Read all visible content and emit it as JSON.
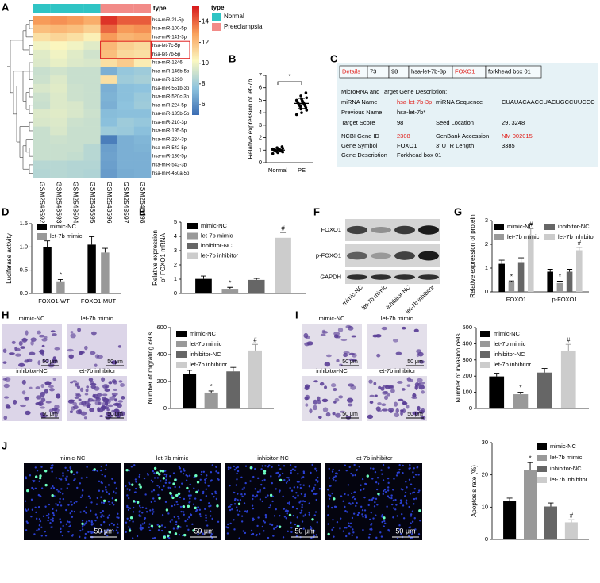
{
  "panel_labels": [
    "A",
    "B",
    "C",
    "D",
    "E",
    "F",
    "G",
    "H",
    "I",
    "J"
  ],
  "chart_data": [
    {
      "type": "heatmap",
      "annotation_label": "type",
      "group_legend_title": "type",
      "group_legend": [
        {
          "name": "Normal",
          "color": "#2fc4c4"
        },
        {
          "name": "Preeclampsia",
          "color": "#f28b88"
        }
      ],
      "columns": [
        "GSM2548592",
        "GSM2548593",
        "GSM2548594",
        "GSM2548595",
        "GSM2548596",
        "GSM2548597",
        "GSM2548598"
      ],
      "column_groups": [
        "Normal",
        "Normal",
        "Normal",
        "Normal",
        "Preeclampsia",
        "Preeclampsia",
        "Preeclampsia"
      ],
      "rows": [
        "hsa-miR-21-5p",
        "hsa-miR-100-5p",
        "hsa-miR-141-3p",
        "hsa-let-7c-5p",
        "hsa-let-7b-5p",
        "hsa-miR-1246",
        "hsa-miR-146b-5p",
        "hsa-miR-1290",
        "hsa-miR-551b-3p",
        "hsa-miR-520c-3p",
        "hsa-miR-224-5p",
        "hsa-miR-135b-5p",
        "hsa-miR-210-3p",
        "hsa-miR-195-5p",
        "hsa-miR-224-3p",
        "hsa-miR-542-5p",
        "hsa-miR-136-5p",
        "hsa-miR-542-3p",
        "hsa-miR-450a-5p"
      ],
      "values": [
        [
          13,
          13.2,
          13,
          12.5,
          15,
          14.2,
          14.2
        ],
        [
          12,
          12.2,
          12,
          11.5,
          14,
          13,
          13.2
        ],
        [
          11,
          11.3,
          11,
          10.5,
          13,
          12.3,
          12.5
        ],
        [
          10,
          10.3,
          10,
          9.6,
          12.2,
          11.5,
          11.2
        ],
        [
          9.6,
          10,
          9.6,
          9.2,
          12,
          11.2,
          11
        ],
        [
          9.5,
          9.8,
          9.5,
          9.4,
          11,
          11.6,
          10.6
        ],
        [
          9,
          9.2,
          9,
          9,
          7,
          7.8,
          8
        ],
        [
          9.1,
          9.5,
          9,
          9,
          11,
          8,
          8.2
        ],
        [
          9.4,
          9.6,
          9.1,
          9,
          7,
          7.5,
          7.6
        ],
        [
          9.1,
          9.5,
          9.1,
          9,
          7.1,
          7.5,
          7.9
        ],
        [
          9,
          9.5,
          9.4,
          9,
          7,
          7.6,
          8
        ],
        [
          9.5,
          9.6,
          9.4,
          9.1,
          7.4,
          7.5,
          7.5
        ],
        [
          9.4,
          9.5,
          9.1,
          9,
          7.5,
          8,
          7.8
        ],
        [
          9,
          9.4,
          9,
          9,
          8,
          7.9,
          7.5
        ],
        [
          9,
          9.1,
          9,
          9,
          5.5,
          7,
          7.2
        ],
        [
          9,
          9,
          9,
          8.6,
          6.5,
          7,
          7.1
        ],
        [
          9,
          9,
          8.9,
          8.6,
          6.6,
          7,
          7
        ],
        [
          8.6,
          8.6,
          8.5,
          8.5,
          6.5,
          7,
          7
        ],
        [
          8.5,
          8.6,
          8.5,
          8.4,
          6.4,
          6.9,
          7
        ]
      ],
      "colorbar_lim": [
        5,
        15.5
      ],
      "colorbar_ticks": [
        6,
        8,
        10,
        12,
        14
      ],
      "colormap": [
        "#3b6db3",
        "#8fc4de",
        "#fbf8c0",
        "#f9a15c",
        "#d7191c"
      ]
    },
    {
      "type": "dot",
      "ylabel": "Relative expression of let-7b",
      "categories": [
        "Normal",
        "PE"
      ],
      "values": [
        [
          0.72,
          0.8,
          0.85,
          0.88,
          0.9,
          0.92,
          0.95,
          0.97,
          0.98,
          1.0,
          1.0,
          1.02,
          1.04,
          1.05,
          1.07,
          1.1,
          1.12,
          1.15,
          1.2,
          1.28
        ],
        [
          3.85,
          4.0,
          4.2,
          4.3,
          4.4,
          4.5,
          4.55,
          4.6,
          4.65,
          4.7,
          4.75,
          4.8,
          4.85,
          4.9,
          4.95,
          5.0,
          5.1,
          5.2,
          5.35,
          5.6
        ]
      ],
      "means": [
        1.0,
        4.75
      ],
      "errors": [
        0.15,
        0.4
      ],
      "color": "#000000",
      "ylim": [
        0,
        7
      ],
      "yticks": [
        0,
        1,
        2,
        3,
        4,
        5,
        6,
        7
      ],
      "annotation": "*"
    },
    {
      "type": "bar",
      "ylabel": "Luciferase activity",
      "categories": [
        "FOXO1-WT",
        "FOXO1-MUT"
      ],
      "series": [
        {
          "name": "mimic-NC",
          "color": "#000000",
          "values": [
            1.0,
            1.05
          ],
          "errors": [
            0.13,
            0.17
          ],
          "significance": [
            null,
            null
          ]
        },
        {
          "name": "let-7b mimic",
          "color": "#999999",
          "values": [
            0.26,
            0.88
          ],
          "errors": [
            0.04,
            0.09
          ],
          "significance": [
            "*",
            null
          ]
        }
      ],
      "ylim": [
        0,
        1.5
      ],
      "yticks": [
        {
          "value": 0,
          "label": "0.0"
        },
        {
          "value": 0.5,
          "label": "0.5"
        },
        {
          "value": 1,
          "label": "1.0"
        },
        {
          "value": 1.5,
          "label": "1.5"
        }
      ],
      "legend": "top-left"
    },
    {
      "type": "bar",
      "ylabel": [
        "Relative expression",
        "of FOXO1 mRNA"
      ],
      "categories": [
        null
      ],
      "series": [
        {
          "name": "mimic-NC",
          "color": "#000000",
          "values": [
            1.02
          ],
          "errors": [
            0.2
          ],
          "significance": [
            null
          ]
        },
        {
          "name": "let-7b mimic",
          "color": "#999999",
          "values": [
            0.33
          ],
          "errors": [
            0.1
          ],
          "significance": [
            "*"
          ]
        },
        {
          "name": "inhibitor-NC",
          "color": "#666666",
          "values": [
            0.95
          ],
          "errors": [
            0.1
          ],
          "significance": [
            null
          ]
        },
        {
          "name": "let-7b inhibitor",
          "color": "#cccccc",
          "values": [
            3.9
          ],
          "errors": [
            0.35
          ],
          "significance": [
            "#"
          ]
        }
      ],
      "ylim": [
        0,
        5
      ],
      "yticks": [
        0,
        1,
        2,
        3,
        4,
        5
      ],
      "legend": "top-left"
    },
    {
      "type": "bar",
      "ylabel": "Relative expression of protein",
      "categories": [
        "FOXO1",
        "p-FOXO1"
      ],
      "series": [
        {
          "name": "mimic-NC",
          "color": "#000000",
          "values": [
            1.18,
            0.85
          ],
          "errors": [
            0.15,
            0.1
          ],
          "significance": [
            null,
            null
          ]
        },
        {
          "name": "let-7b mimic",
          "color": "#999999",
          "values": [
            0.4,
            0.37
          ],
          "errors": [
            0.06,
            0.08
          ],
          "significance": [
            "*",
            "*"
          ]
        },
        {
          "name": "inhibitor-NC",
          "color": "#666666",
          "values": [
            1.25,
            0.85
          ],
          "errors": [
            0.18,
            0.1
          ],
          "significance": [
            null,
            null
          ]
        },
        {
          "name": "let-7b inhibitor",
          "color": "#cccccc",
          "values": [
            2.4,
            1.75
          ],
          "errors": [
            0.25,
            0.12
          ],
          "significance": [
            "#",
            "#"
          ]
        }
      ],
      "ylim": [
        0,
        3
      ],
      "yticks": [
        0,
        1,
        2,
        3
      ],
      "legend": "top"
    },
    {
      "type": "bar",
      "ylabel": "Number of migrating cells",
      "categories": [
        null
      ],
      "series": [
        {
          "name": "mimic-NC",
          "color": "#000000",
          "values": [
            258
          ],
          "errors": [
            25
          ],
          "significance": [
            null
          ]
        },
        {
          "name": "let-7b mimic",
          "color": "#999999",
          "values": [
            118
          ],
          "errors": [
            12
          ],
          "significance": [
            "*"
          ]
        },
        {
          "name": "inhibitor-NC",
          "color": "#666666",
          "values": [
            275
          ],
          "errors": [
            30
          ],
          "significance": [
            null
          ]
        },
        {
          "name": "let-7b inhibitor",
          "color": "#cccccc",
          "values": [
            430
          ],
          "errors": [
            45
          ],
          "significance": [
            "#"
          ]
        }
      ],
      "ylim": [
        0,
        600
      ],
      "yticks": [
        0,
        200,
        400,
        600
      ],
      "legend": "top-left"
    },
    {
      "type": "bar",
      "ylabel": "Number of invasion cells",
      "categories": [
        null
      ],
      "series": [
        {
          "name": "mimic-NC",
          "color": "#000000",
          "values": [
            198
          ],
          "errors": [
            20
          ],
          "significance": [
            null
          ]
        },
        {
          "name": "let-7b mimic",
          "color": "#999999",
          "values": [
            88
          ],
          "errors": [
            12
          ],
          "significance": [
            "*"
          ]
        },
        {
          "name": "inhibitor-NC",
          "color": "#666666",
          "values": [
            222
          ],
          "errors": [
            25
          ],
          "significance": [
            null
          ]
        },
        {
          "name": "let-7b inhibitor",
          "color": "#cccccc",
          "values": [
            358
          ],
          "errors": [
            38
          ],
          "significance": [
            "#"
          ]
        }
      ],
      "ylim": [
        0,
        500
      ],
      "yticks": [
        0,
        100,
        200,
        300,
        400,
        500
      ],
      "legend": "top-left"
    },
    {
      "type": "bar",
      "ylabel": "Apoptosis rate (%)",
      "categories": [
        null
      ],
      "series": [
        {
          "name": "mimic-NC",
          "color": "#000000",
          "values": [
            11.8
          ],
          "errors": [
            1
          ],
          "significance": [
            null
          ]
        },
        {
          "name": "let-7b mimic",
          "color": "#999999",
          "values": [
            21.5
          ],
          "errors": [
            2.3
          ],
          "significance": [
            "*"
          ]
        },
        {
          "name": "inhibitor-NC",
          "color": "#666666",
          "values": [
            10.2
          ],
          "errors": [
            1.1
          ],
          "significance": [
            null
          ]
        },
        {
          "name": "let-7b inhibitor",
          "color": "#cccccc",
          "values": [
            5.3
          ],
          "errors": [
            0.8
          ],
          "significance": [
            "#"
          ]
        }
      ],
      "ylim": [
        0,
        30
      ],
      "yticks": [
        0,
        10,
        20,
        30
      ],
      "legend": "top-right"
    }
  ],
  "table": {
    "summary": [
      "Details",
      "73",
      "98",
      "hsa-let-7b-3p",
      "FOXO1",
      "forkhead box 01"
    ],
    "title": "MicroRNA and Target Gene Description:",
    "rows": [
      [
        "miRNA Name",
        "hsa-let-7b-3p",
        "miRNA Sequence",
        "CUAUACAACCUACUGCCUUCCC"
      ],
      [
        "Previous Name",
        "hsa-let-7b*"
      ],
      [
        "Target Score",
        "98",
        "Seed Location",
        "29, 3248"
      ],
      [
        "NCBI Gene ID",
        "2308",
        "GenBank Accession",
        "NM 002015"
      ],
      [
        "Gene Symbol",
        "FOXO1",
        "3' UTR Length",
        "3385"
      ],
      [
        "Gene Description",
        "Forkhead box 01"
      ]
    ]
  },
  "blot": {
    "rows": [
      "FOXO1",
      "p-FOXO1",
      "GAPDH"
    ],
    "lanes": [
      "mimic-NC",
      "let-7b mimic",
      "inhibitor-NC",
      "let-7b inhibitor"
    ]
  },
  "micrographs": {
    "H": {
      "labels": [
        "mimic-NC",
        "let-7b mimic",
        "inhibitor-NC",
        "let-7b inhibitor"
      ],
      "scale": "50 μm"
    },
    "I": {
      "labels": [
        "mimic-NC",
        "let-7b mimic",
        "inhibitor-NC",
        "let-7b inhibitor"
      ],
      "scale": "50 μm"
    },
    "J": {
      "labels": [
        "mimic-NC",
        "let-7b mimic",
        "inhibitor-NC",
        "let-7b inhibitor"
      ],
      "scale": "50 μm"
    }
  }
}
